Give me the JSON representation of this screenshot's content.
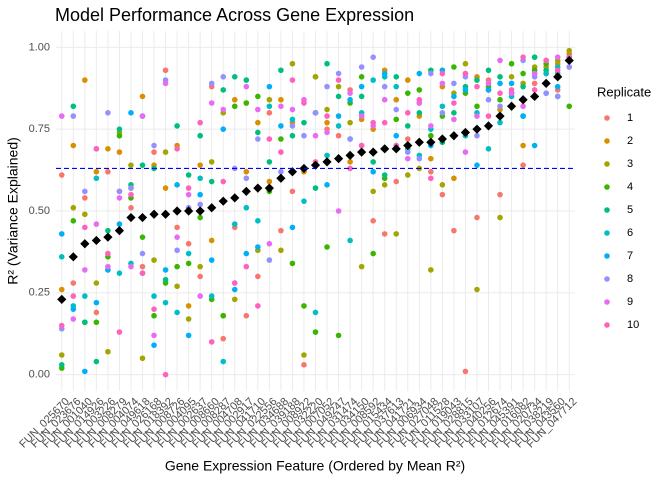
{
  "chart_data": {
    "type": "scatter",
    "title": "Model Performance Across Gene Expression",
    "x_label": "Gene Expression Feature (Ordered by Mean R²)",
    "y_label": "R² (Variance Explained)",
    "legend_title": "Replicate",
    "categories": [
      "FUN_025670",
      "FUN_023676",
      "FUN_001040",
      "FUN_014926",
      "FUN_003226",
      "FUN_008279",
      "FUN_004074",
      "FUN_049618",
      "FUN_026168",
      "FUN_018392",
      "FUN_008726",
      "FUN_004095",
      "FUN_002637",
      "FUN_008660",
      "FUN_008287",
      "FUN_004708",
      "FUN_002917",
      "FUN_041710",
      "FUN_022556",
      "FUN_034688",
      "FUN_039188",
      "FUN_008922",
      "FUN_032220",
      "FUN_007052",
      "FUN_049247",
      "FUN_031474",
      "FUN_034150",
      "FUN_008592",
      "FUN_015434",
      "FUN_037613",
      "FUN_041721",
      "FUN_006934",
      "FUN_027048",
      "FUN_011528",
      "FUN_019043",
      "FUN_028815",
      "FUN_033107",
      "FUN_040256",
      "FUN_012674",
      "FUN_045391",
      "FUN_016082",
      "FUN_020734",
      "FUN_038219",
      "FUN_043560",
      "FUN_047712"
    ],
    "ylim": [
      -0.05,
      1.05
    ],
    "yticks": [
      {
        "value": 0,
        "label": "0.00"
      },
      {
        "value": 0.25,
        "label": "0.25"
      },
      {
        "value": 0.5,
        "label": "0.50"
      },
      {
        "value": 0.75,
        "label": "0.75"
      },
      {
        "value": 1,
        "label": "1.00"
      }
    ],
    "grid": true,
    "hline": 0.63,
    "hline_color": "#0000ff",
    "legend_position": "right",
    "mean_color": "#000000",
    "means": [
      0.23,
      0.36,
      0.4,
      0.41,
      0.42,
      0.44,
      0.48,
      0.48,
      0.49,
      0.49,
      0.5,
      0.5,
      0.5,
      0.51,
      0.53,
      0.54,
      0.56,
      0.57,
      0.57,
      0.6,
      0.62,
      0.63,
      0.64,
      0.65,
      0.66,
      0.67,
      0.68,
      0.68,
      0.69,
      0.69,
      0.7,
      0.71,
      0.71,
      0.72,
      0.73,
      0.74,
      0.75,
      0.76,
      0.79,
      0.82,
      0.84,
      0.85,
      0.89,
      0.91,
      0.96
    ],
    "series": [
      {
        "name": "1",
        "color": "#F8766D",
        "values": [
          0.61,
          0.28,
          0.54,
          0.19,
          0.62,
          0.56,
          0.51,
          0.33,
          0.68,
          0.93,
          0.45,
          0.4,
          0.3,
          0.88,
          0.11,
          0.45,
          0.18,
          0.3,
          0.8,
          0.44,
          0.56,
          0.03,
          0.8,
          0.75,
          0.73,
          0.87,
          0.7,
          0.47,
          0.43,
          0.59,
          0.72,
          0.83,
          0.62,
          0.55,
          0.44,
          0.01,
          0.48,
          0.9,
          0.55,
          0.82,
          0.64,
          0.89,
          0.92,
          0.87,
          0.94
        ]
      },
      {
        "name": "2",
        "color": "#D89000",
        "values": [
          0.26,
          0.7,
          0.9,
          0.62,
          0.69,
          0.68,
          0.57,
          0.85,
          0.64,
          0.57,
          0.7,
          0.21,
          0.64,
          0.41,
          0.18,
          0.84,
          0.62,
          0.77,
          0.59,
          0.84,
          0.77,
          0.62,
          0.91,
          0.77,
          0.66,
          0.65,
          0.78,
          0.75,
          0.93,
          0.84,
          0.9,
          0.79,
          0.66,
          0.88,
          0.6,
          0.92,
          0.91,
          0.76,
          0.81,
          0.86,
          0.7,
          0.97,
          0.94,
          0.95,
          0.98
        ]
      },
      {
        "name": "3",
        "color": "#A3A500",
        "values": [
          0.06,
          0.51,
          0.49,
          0.28,
          0.07,
          0.74,
          0.64,
          0.05,
          0.35,
          0.68,
          0.27,
          0.17,
          0.33,
          0.65,
          0.8,
          0.23,
          0.83,
          0.38,
          0.84,
          0.38,
          0.95,
          0.06,
          0.91,
          0.81,
          0.88,
          0.77,
          0.33,
          0.56,
          0.58,
          0.43,
          0.61,
          0.63,
          0.32,
          0.58,
          0.86,
          0.95,
          0.26,
          0.87,
          0.48,
          0.91,
          0.89,
          0.94,
          0.89,
          0.96,
          0.99
        ]
      },
      {
        "name": "4",
        "color": "#39B600",
        "values": [
          0.02,
          0.47,
          0.16,
          0.16,
          0.36,
          0.73,
          0.54,
          0.42,
          0.18,
          0.28,
          0.33,
          0.34,
          0.48,
          0.23,
          0.18,
          0.82,
          0.83,
          0.85,
          0.56,
          0.72,
          0.34,
          0.21,
          0.13,
          0.39,
          0.12,
          0.83,
          0.91,
          0.37,
          0.6,
          0.78,
          0.86,
          0.87,
          0.73,
          0.79,
          0.94,
          0.86,
          0.82,
          0.88,
          0.84,
          0.95,
          0.92,
          0.93,
          0.95,
          0.85,
          0.82
        ]
      },
      {
        "name": "5",
        "color": "#00BF7D",
        "values": [
          0.03,
          0.82,
          0.16,
          0.04,
          0.44,
          0.75,
          0.58,
          0.64,
          0.63,
          0.29,
          0.76,
          0.61,
          0.73,
          0.59,
          0.87,
          0.91,
          0.9,
          0.74,
          0.65,
          0.93,
          0.73,
          0.77,
          0.57,
          0.95,
          0.85,
          0.72,
          0.85,
          0.65,
          0.61,
          0.91,
          0.76,
          0.8,
          0.93,
          0.71,
          0.8,
          0.88,
          0.9,
          0.93,
          0.91,
          0.86,
          0.88,
          0.97,
          0.93,
          0.92,
          0.97
        ]
      },
      {
        "name": "6",
        "color": "#00BFC4",
        "values": [
          0.36,
          0.21,
          0.24,
          0.6,
          0.32,
          0.31,
          0.34,
          0.31,
          0.24,
          0.22,
          0.19,
          0.37,
          0.6,
          0.24,
          0.04,
          0.46,
          0.51,
          0.47,
          0.82,
          0.6,
          0.78,
          0.53,
          0.19,
          0.67,
          0.76,
          0.41,
          0.8,
          0.9,
          0.91,
          0.88,
          0.69,
          0.67,
          0.75,
          0.82,
          0.73,
          0.73,
          0.8,
          0.69,
          0.77,
          0.85,
          0.79,
          0.92,
          0.92,
          0.94,
          0.96
        ]
      },
      {
        "name": "7",
        "color": "#00B0F6",
        "values": [
          0.43,
          0.2,
          0.01,
          0.22,
          0.32,
          0.46,
          0.8,
          0.79,
          0.09,
          0.32,
          0.58,
          0.12,
          0.55,
          0.35,
          0.75,
          0.26,
          0.37,
          0.39,
          0.88,
          0.76,
          0.45,
          0.63,
          0.8,
          0.58,
          0.79,
          0.84,
          0.88,
          0.62,
          0.92,
          0.73,
          0.7,
          0.92,
          0.7,
          0.93,
          0.85,
          0.87,
          0.64,
          0.87,
          0.89,
          0.89,
          0.79,
          0.7,
          0.86,
          0.88,
          0.97
        ]
      },
      {
        "name": "8",
        "color": "#9590FF",
        "values": [
          0.14,
          0.79,
          0.56,
          0.69,
          0.8,
          0.56,
          0.57,
          0.37,
          0.7,
          0.9,
          0.38,
          0.51,
          0.52,
          0.89,
          0.91,
          0.63,
          0.6,
          0.72,
          0.35,
          0.62,
          0.76,
          0.73,
          0.8,
          0.88,
          0.92,
          0.72,
          0.94,
          0.97,
          0.88,
          0.81,
          0.68,
          0.66,
          0.92,
          0.8,
          0.89,
          0.91,
          0.73,
          0.84,
          0.82,
          0.86,
          0.96,
          0.91,
          0.86,
          0.85,
          0.94
        ]
      },
      {
        "name": "9",
        "color": "#E76BF3",
        "values": [
          0.79,
          0.17,
          0.32,
          0.46,
          0.33,
          0.54,
          0.33,
          0.79,
          0.12,
          0.89,
          0.42,
          0.55,
          0.24,
          0.83,
          0.81,
          0.28,
          0.88,
          0.81,
          0.4,
          0.82,
          0.81,
          0.84,
          0.73,
          0.74,
          0.5,
          0.86,
          0.79,
          0.76,
          0.84,
          0.7,
          0.66,
          0.83,
          0.76,
          0.89,
          0.78,
          0.68,
          0.79,
          0.89,
          0.96,
          0.86,
          0.82,
          0.92,
          0.96,
          0.97,
          0.96
        ]
      },
      {
        "name": "10",
        "color": "#FF62BC",
        "values": [
          0.15,
          0.24,
          0.45,
          0.69,
          0.37,
          0.13,
          0.55,
          0.31,
          0.2,
          0.0,
          0.69,
          0.57,
          0.77,
          0.1,
          0.59,
          0.28,
          0.33,
          0.21,
          0.72,
          0.68,
          0.9,
          0.83,
          0.65,
          0.79,
          0.9,
          0.63,
          0.7,
          0.77,
          0.77,
          0.7,
          0.8,
          0.84,
          0.6,
          0.92,
          0.83,
          0.92,
          0.88,
          0.79,
          0.86,
          0.87,
          0.97,
          0.87,
          0.96,
          0.93,
          0.97
        ]
      }
    ]
  }
}
